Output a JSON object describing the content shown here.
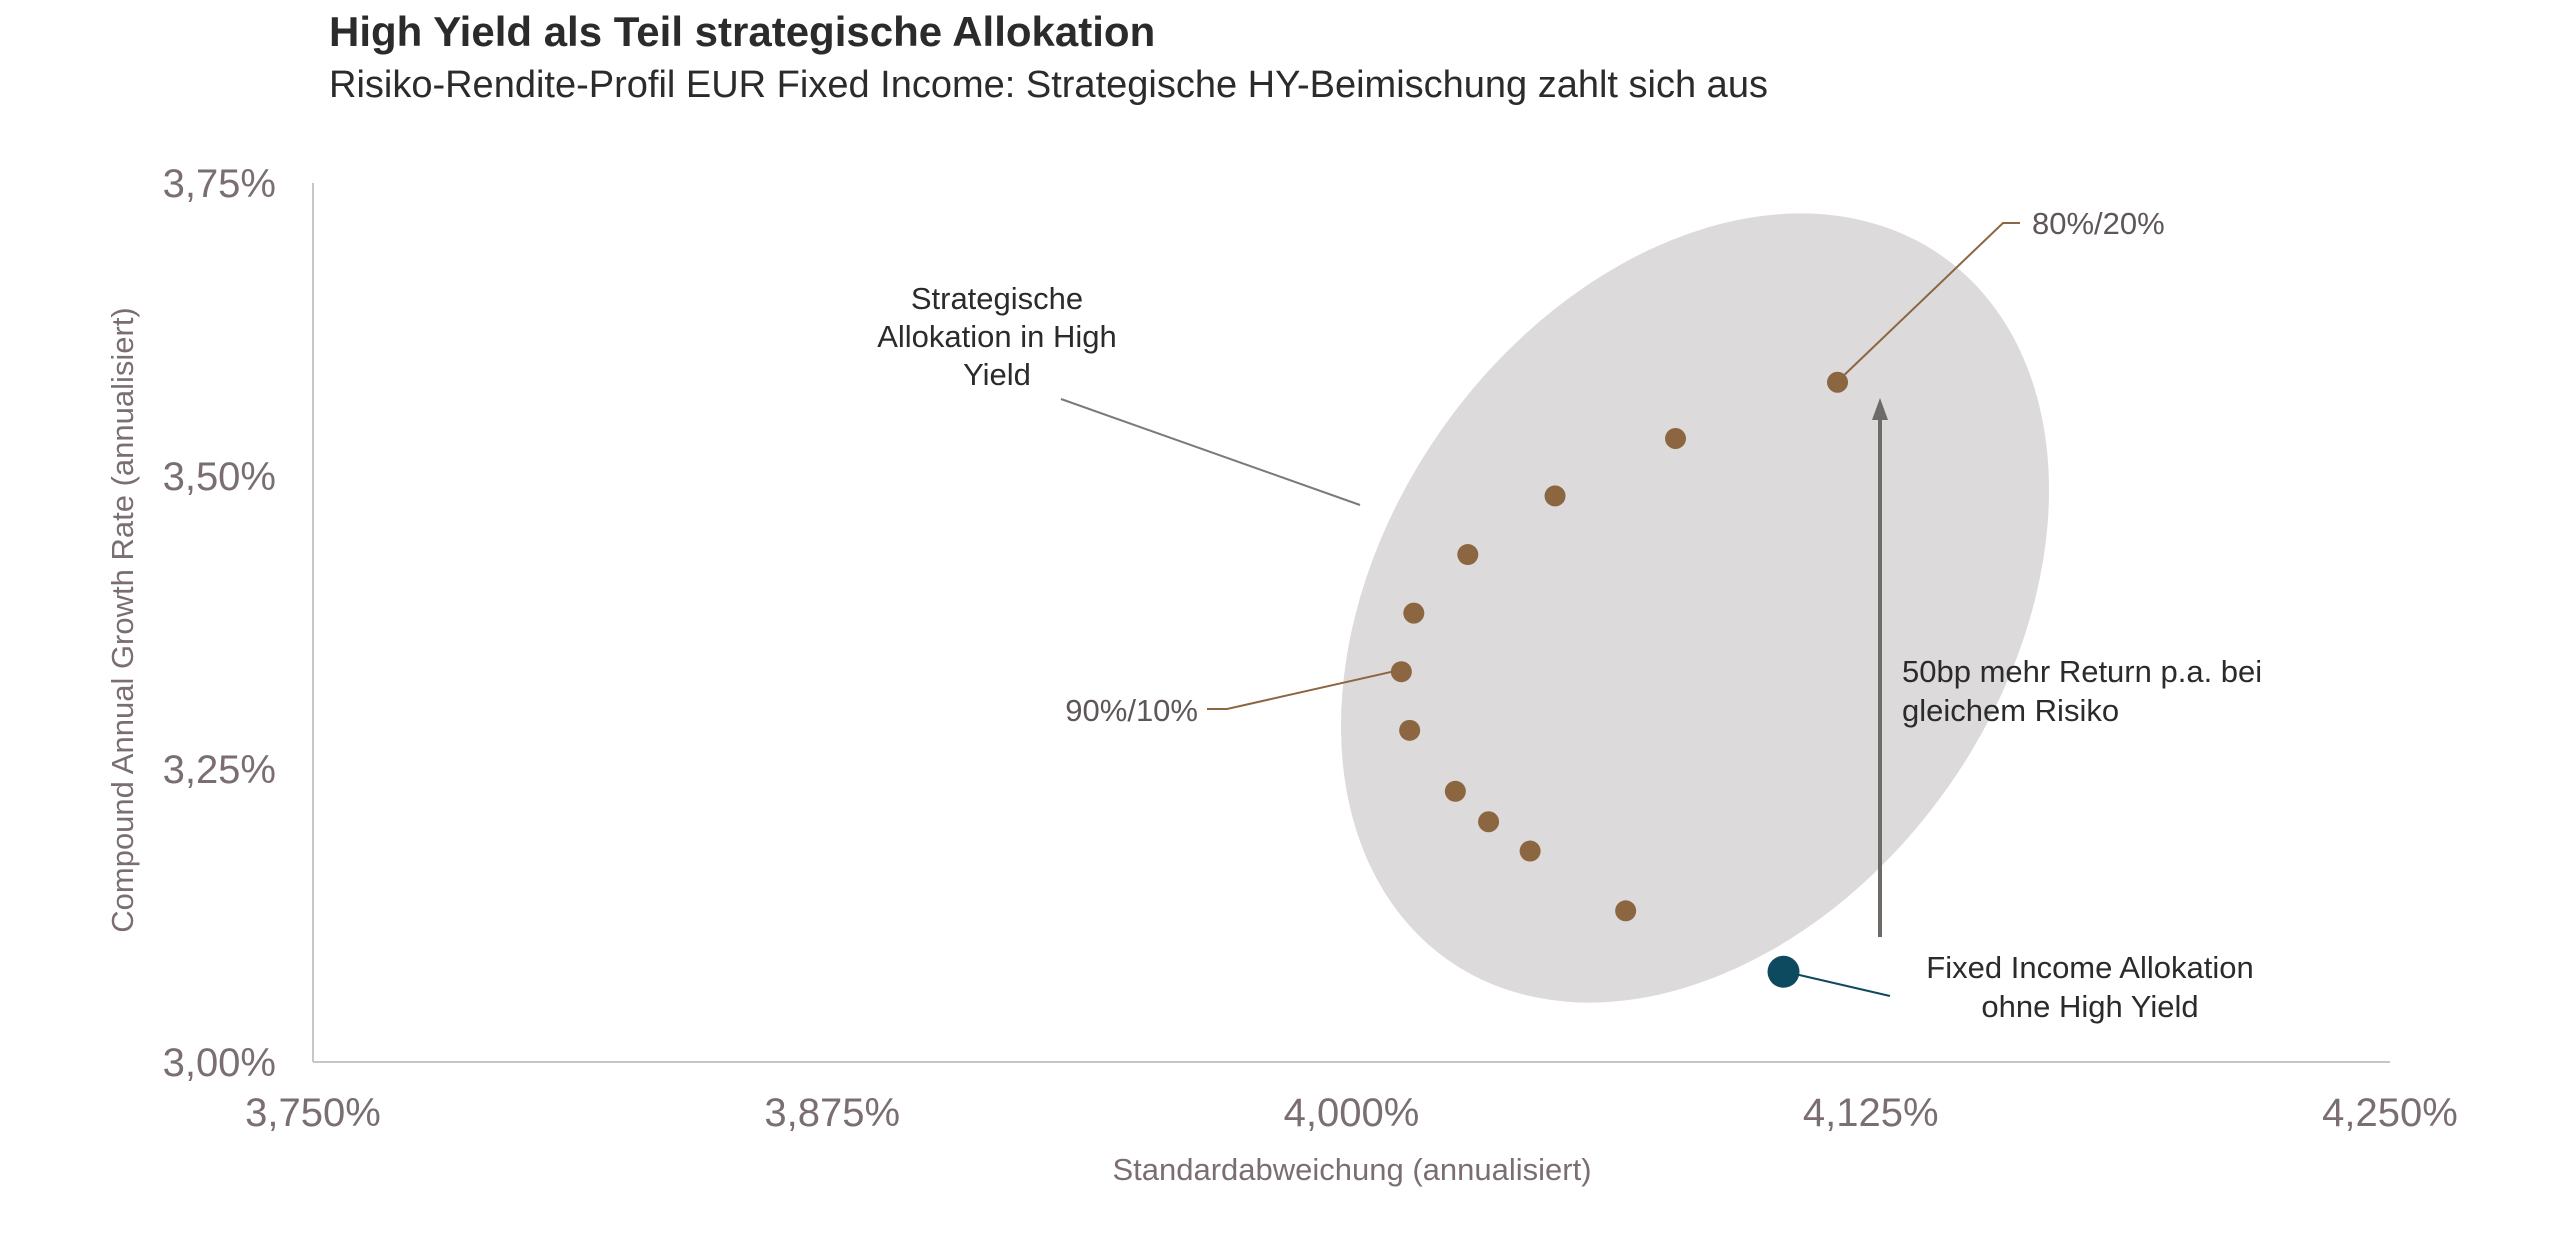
{
  "header": {
    "title": "High Yield als Teil strategische Allokation",
    "subtitle": "Risiko-Rendite-Profil EUR Fixed Income: Strategische HY-Beimischung zahlt sich aus"
  },
  "colors": {
    "hy_points": "#8b6640",
    "base_point": "#0d4a60",
    "ellipse": "#dcdada",
    "axis": "#c9c5c6",
    "arrow": "#6e6a68"
  },
  "chart_data": {
    "type": "scatter",
    "title": "High Yield als Teil strategische Allokation",
    "subtitle": "Risiko-Rendite-Profil EUR Fixed Income: Strategische HY-Beimischung zahlt sich aus",
    "xlabel": "Standardabweichung (annualisiert)",
    "ylabel": "Compound Annual Growth Rate (annualisiert)",
    "xlim": [
      3.75,
      4.25
    ],
    "ylim": [
      3.0,
      3.75
    ],
    "x_ticks": [
      3.75,
      3.875,
      4.0,
      4.125,
      4.25
    ],
    "x_tick_labels": [
      "3,750%",
      "3,875%",
      "4,000%",
      "4,125%",
      "4,250%"
    ],
    "y_ticks": [
      3.0,
      3.25,
      3.5,
      3.75
    ],
    "y_tick_labels": [
      "3,00%",
      "3,25%",
      "3,50%",
      "3,75%"
    ],
    "grid": false,
    "series": [
      {
        "x": [
          4.066,
          4.043,
          4.033,
          4.025,
          4.014,
          4.012,
          4.015,
          4.028,
          4.049,
          4.078,
          4.117
        ],
        "y": [
          3.129,
          3.18,
          3.205,
          3.231,
          3.283,
          3.333,
          3.383,
          3.433,
          3.483,
          3.532,
          3.58
        ]
      },
      {
        "x": [
          4.104
        ],
        "y": [
          3.077
        ]
      }
    ],
    "annotations": {
      "label_8020": "80%/20%",
      "label_9010": "90%/10%",
      "strategic_line1": "Strategische",
      "strategic_line2": "Allokation in High",
      "strategic_line3": "Yield",
      "return_line1": "50bp mehr Return p.a. bei",
      "return_line2": "gleichem Risiko",
      "base_line1": "Fixed Income Allokation",
      "base_line2": "ohne High Yield"
    }
  }
}
